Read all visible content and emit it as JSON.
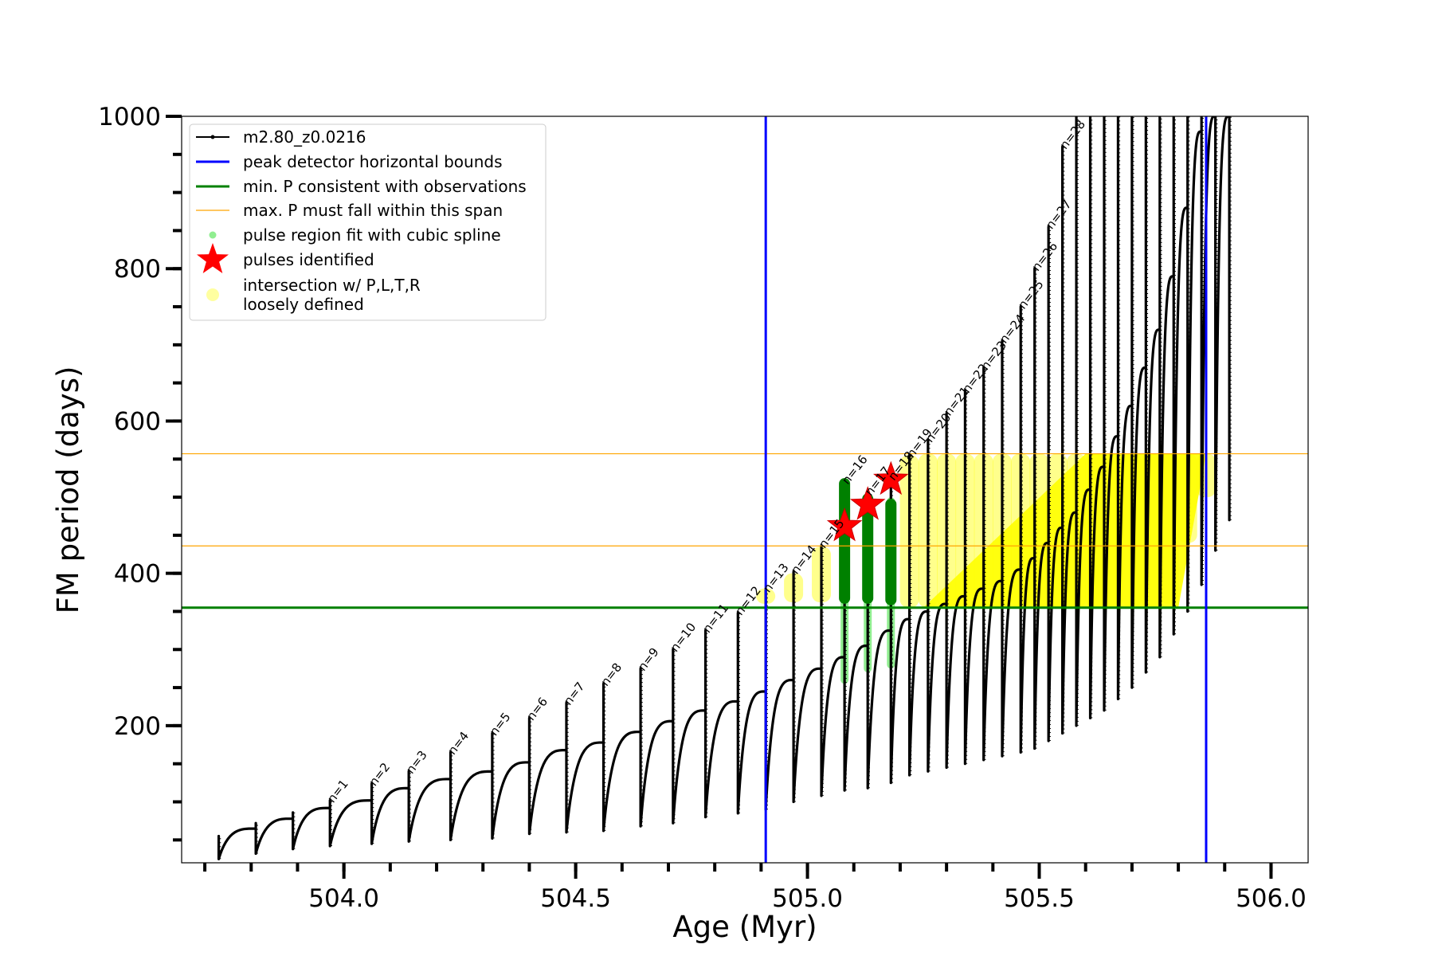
{
  "chart_data": {
    "type": "line",
    "xlabel": "Age (Myr)",
    "ylabel": "FM period (days)",
    "xlim": [
      503.65,
      506.08
    ],
    "ylim": [
      20,
      1000
    ],
    "x_ticks": [
      504.0,
      504.5,
      505.0,
      505.5,
      506.0
    ],
    "x_tick_labels": [
      "504.0",
      "504.5",
      "505.0",
      "505.5",
      "506.0"
    ],
    "y_ticks": [
      200,
      400,
      600,
      800,
      1000
    ],
    "y_tick_labels": [
      "200",
      "400",
      "600",
      "800",
      "1000"
    ],
    "grid": false,
    "legend_position": "top-left",
    "legend": [
      {
        "label": "m2.80_z0.0216",
        "kind": "line-marker",
        "color": "#000000"
      },
      {
        "label": "peak detector horizontal bounds",
        "kind": "line",
        "color": "#0000ff"
      },
      {
        "label": "min. P consistent with observations",
        "kind": "line",
        "color": "#008000"
      },
      {
        "label": "max. P must fall within this span",
        "kind": "thin-line",
        "color": "#ffa500"
      },
      {
        "label": "pulse region fit with cubic spline",
        "kind": "dot",
        "color": "#90ee90"
      },
      {
        "label": "pulses identified",
        "kind": "star",
        "color": "#ff0000"
      },
      {
        "label": "intersection w/ P,L,T,R",
        "label2": "loosely defined",
        "kind": "dot-large",
        "color": "#ffffa0"
      }
    ],
    "vertical_lines": [
      {
        "x": 504.91,
        "color": "#0000ff"
      },
      {
        "x": 505.86,
        "color": "#0000ff"
      }
    ],
    "horizontal_lines": [
      {
        "y": 355,
        "color": "#008000",
        "width": 3
      },
      {
        "y": 436,
        "color": "#ffa500",
        "width": 1.2
      },
      {
        "y": 557,
        "color": "#ffa500",
        "width": 1.2
      }
    ],
    "pulses": [
      {
        "x": 503.73,
        "pre": 48,
        "post": 25,
        "peak": 55,
        "label": ""
      },
      {
        "x": 503.81,
        "pre": 65,
        "post": 32,
        "peak": 72,
        "label": ""
      },
      {
        "x": 503.89,
        "pre": 78,
        "post": 38,
        "peak": 86,
        "label": ""
      },
      {
        "x": 503.97,
        "pre": 92,
        "post": 42,
        "peak": 102,
        "label": "n=1"
      },
      {
        "x": 504.06,
        "pre": 102,
        "post": 45,
        "peak": 124,
        "label": "n=2"
      },
      {
        "x": 504.14,
        "pre": 118,
        "post": 48,
        "peak": 140,
        "label": "n=3"
      },
      {
        "x": 504.23,
        "pre": 130,
        "post": 50,
        "peak": 165,
        "label": "n=4"
      },
      {
        "x": 504.32,
        "pre": 140,
        "post": 52,
        "peak": 190,
        "label": "n=5"
      },
      {
        "x": 504.4,
        "pre": 152,
        "post": 58,
        "peak": 210,
        "label": "n=6"
      },
      {
        "x": 504.48,
        "pre": 168,
        "post": 60,
        "peak": 230,
        "label": "n=7"
      },
      {
        "x": 504.56,
        "pre": 178,
        "post": 62,
        "peak": 255,
        "label": "n=8"
      },
      {
        "x": 504.64,
        "pre": 192,
        "post": 68,
        "peak": 275,
        "label": "n=9"
      },
      {
        "x": 504.71,
        "pre": 206,
        "post": 72,
        "peak": 300,
        "label": "n=10"
      },
      {
        "x": 504.78,
        "pre": 220,
        "post": 80,
        "peak": 325,
        "label": "n=11"
      },
      {
        "x": 504.85,
        "pre": 232,
        "post": 85,
        "peak": 348,
        "label": "n=12"
      },
      {
        "x": 504.91,
        "pre": 245,
        "post": 90,
        "peak": 378,
        "label": "n=13"
      },
      {
        "x": 504.97,
        "pre": 260,
        "post": 100,
        "peak": 402,
        "label": "n=14"
      },
      {
        "x": 505.03,
        "pre": 275,
        "post": 108,
        "peak": 436,
        "label": "n=15"
      },
      {
        "x": 505.08,
        "pre": 290,
        "post": 115,
        "peak": 520,
        "label": "n=16"
      },
      {
        "x": 505.13,
        "pre": 305,
        "post": 118,
        "peak": 505,
        "label": "n=17"
      },
      {
        "x": 505.18,
        "pre": 325,
        "post": 125,
        "peak": 525,
        "label": "n=18"
      },
      {
        "x": 505.22,
        "pre": 340,
        "post": 135,
        "peak": 555,
        "label": "n=19"
      },
      {
        "x": 505.26,
        "pre": 350,
        "post": 140,
        "peak": 575,
        "label": "n=20"
      },
      {
        "x": 505.3,
        "pre": 360,
        "post": 145,
        "peak": 610,
        "label": "n=21"
      },
      {
        "x": 505.34,
        "pre": 370,
        "post": 150,
        "peak": 640,
        "label": "n=22"
      },
      {
        "x": 505.38,
        "pre": 380,
        "post": 155,
        "peak": 670,
        "label": "n=23"
      },
      {
        "x": 505.42,
        "pre": 390,
        "post": 160,
        "peak": 705,
        "label": "n=24"
      },
      {
        "x": 505.46,
        "pre": 405,
        "post": 165,
        "peak": 750,
        "label": "n=25"
      },
      {
        "x": 505.49,
        "pre": 420,
        "post": 170,
        "peak": 800,
        "label": "n=26"
      },
      {
        "x": 505.52,
        "pre": 440,
        "post": 180,
        "peak": 855,
        "label": "n=27"
      },
      {
        "x": 505.55,
        "pre": 460,
        "post": 190,
        "peak": 960,
        "label": "n=28"
      },
      {
        "x": 505.58,
        "pre": 480,
        "post": 200,
        "peak": 1000,
        "label": ""
      },
      {
        "x": 505.61,
        "pre": 510,
        "post": 210,
        "peak": 1000,
        "label": ""
      },
      {
        "x": 505.64,
        "pre": 540,
        "post": 220,
        "peak": 1000,
        "label": ""
      },
      {
        "x": 505.67,
        "pre": 580,
        "post": 235,
        "peak": 1000,
        "label": ""
      },
      {
        "x": 505.7,
        "pre": 620,
        "post": 250,
        "peak": 1000,
        "label": ""
      },
      {
        "x": 505.73,
        "pre": 670,
        "post": 270,
        "peak": 1000,
        "label": ""
      },
      {
        "x": 505.76,
        "pre": 720,
        "post": 290,
        "peak": 1000,
        "label": ""
      },
      {
        "x": 505.79,
        "pre": 790,
        "post": 320,
        "peak": 1000,
        "label": ""
      },
      {
        "x": 505.82,
        "pre": 880,
        "post": 350,
        "peak": 1000,
        "label": ""
      },
      {
        "x": 505.85,
        "pre": 980,
        "post": 385,
        "peak": 1000,
        "label": ""
      },
      {
        "x": 505.88,
        "pre": 1000,
        "post": 430,
        "peak": 1000,
        "label": ""
      },
      {
        "x": 505.91,
        "pre": 1000,
        "post": 470,
        "peak": 1000,
        "label": ""
      }
    ],
    "spline_regions": [
      {
        "x": 505.08,
        "y_low": 255,
        "y_high": 500
      },
      {
        "x": 505.13,
        "y_low": 270,
        "y_high": 500
      },
      {
        "x": 505.18,
        "y_low": 275,
        "y_high": 500
      }
    ],
    "green_segments": [
      {
        "x": 505.08,
        "y_low": 360,
        "y_high": 525
      },
      {
        "x": 505.13,
        "y_low": 360,
        "y_high": 505
      },
      {
        "x": 505.18,
        "y_low": 358,
        "y_high": 498
      }
    ],
    "stars": [
      {
        "x": 505.08,
        "y": 462
      },
      {
        "x": 505.13,
        "y": 490
      },
      {
        "x": 505.18,
        "y": 523
      }
    ],
    "intersection_regions": [
      {
        "x": 504.91,
        "y_low": 360,
        "y_high": 380
      },
      {
        "x": 504.97,
        "y_low": 362,
        "y_high": 400
      },
      {
        "x": 505.03,
        "y_low": 362,
        "y_high": 435
      },
      {
        "x": 505.22,
        "y_low": 355,
        "y_high": 555
      },
      {
        "x": 505.26,
        "y_low": 355,
        "y_high": 557
      },
      {
        "x": 505.3,
        "y_low": 355,
        "y_high": 557
      },
      {
        "x": 505.34,
        "y_low": 355,
        "y_high": 557
      },
      {
        "x": 505.38,
        "y_low": 355,
        "y_high": 557
      },
      {
        "x": 505.42,
        "y_low": 355,
        "y_high": 557
      },
      {
        "x": 505.46,
        "y_low": 355,
        "y_high": 557
      },
      {
        "x": 505.5,
        "y_low": 355,
        "y_high": 557
      },
      {
        "x": 505.54,
        "y_low": 355,
        "y_high": 557
      },
      {
        "x": 505.58,
        "y_low": 355,
        "y_high": 557
      },
      {
        "x": 505.62,
        "y_low": 355,
        "y_high": 557
      },
      {
        "x": 505.66,
        "y_low": 355,
        "y_high": 557
      },
      {
        "x": 505.7,
        "y_low": 355,
        "y_high": 557
      },
      {
        "x": 505.74,
        "y_low": 355,
        "y_high": 557
      },
      {
        "x": 505.78,
        "y_low": 360,
        "y_high": 557
      },
      {
        "x": 505.82,
        "y_low": 440,
        "y_high": 557
      },
      {
        "x": 505.86,
        "y_low": 500,
        "y_high": 557
      }
    ],
    "intersection_diagonal": [
      {
        "x": 505.25,
        "y": 355
      },
      {
        "x": 505.6,
        "y": 557
      }
    ]
  }
}
